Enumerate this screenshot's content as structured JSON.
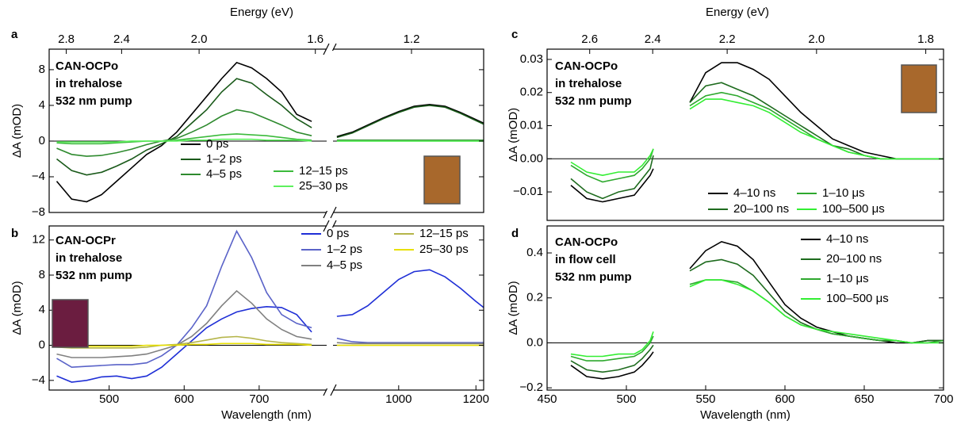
{
  "chart_data": [
    {
      "type": "line",
      "panel_label": "a",
      "x2label": "Energy (eV)",
      "ylabel": "ΔA (mOD)",
      "annotations": [
        {
          "text": "CAN-OCPo",
          "color": "#22b822"
        },
        {
          "text": "in trehalose",
          "color": "#22b822"
        },
        {
          "text": "532 nm pump",
          "color": "#000000"
        }
      ],
      "x": [
        430,
        450,
        470,
        490,
        510,
        530,
        550,
        570,
        590,
        610,
        630,
        650,
        670,
        690,
        710,
        730,
        750,
        770,
        800,
        840,
        880,
        920,
        960,
        1000,
        1040,
        1080,
        1120,
        1160,
        1200,
        1220
      ],
      "xlim": [
        420,
        1220
      ],
      "xbreak": [
        790,
        830
      ],
      "x2ticks": [
        2.8,
        2.4,
        {
          "value": 2,
          "label": "2.0"
        },
        1.6,
        1.2
      ],
      "ylim": [
        -8,
        10.3
      ],
      "yticks": [
        {
          "value": -8,
          "label": "−8"
        },
        {
          "value": -4,
          "label": "−4"
        },
        0,
        4,
        8
      ],
      "series": [
        {
          "name": "0 ps",
          "color": "#000000",
          "values": [
            -4.5,
            -6.5,
            -6.8,
            -6,
            -4.5,
            -3,
            -1.5,
            -0.5,
            1,
            3,
            5,
            7,
            8.8,
            8.2,
            7,
            5.5,
            3,
            2.2,
            null,
            0.5,
            1,
            1.8,
            2.6,
            3.3,
            3.9,
            4.1,
            3.9,
            3.2,
            2.4,
            2.0
          ]
        },
        {
          "name": "1–2 ps",
          "color": "#1a5a1a",
          "values": [
            -2,
            -3.3,
            -3.8,
            -3.5,
            -2.8,
            -2,
            -1,
            -0.3,
            0.5,
            2,
            3.5,
            5.5,
            7,
            6.5,
            5.2,
            4,
            2.5,
            1.5,
            null,
            0.4,
            0.9,
            1.7,
            2.5,
            3.2,
            3.8,
            4.0,
            3.8,
            3.1,
            2.3,
            1.9
          ]
        },
        {
          "name": "4–5 ps",
          "color": "#2e8a2e",
          "values": [
            -0.8,
            -1.5,
            -1.7,
            -1.6,
            -1.3,
            -0.9,
            -0.4,
            0,
            0.3,
            1,
            1.8,
            2.8,
            3.5,
            3.2,
            2.5,
            1.8,
            1,
            0.6,
            null,
            0.1,
            0.1,
            0.1,
            0.1,
            0.1,
            0.1,
            0.1,
            0.1,
            0.1,
            0.1,
            0.1
          ]
        },
        {
          "name": "12–15 ps",
          "color": "#3cba3c",
          "values": [
            -0.2,
            -0.3,
            -0.3,
            -0.3,
            -0.2,
            -0.1,
            0,
            0,
            0.1,
            0.3,
            0.5,
            0.7,
            0.8,
            0.7,
            0.6,
            0.4,
            0.2,
            0.1,
            null,
            0,
            0,
            0,
            0,
            0,
            0,
            0,
            0,
            0,
            0,
            0
          ]
        },
        {
          "name": "25–30 ps",
          "color": "#5ef05e",
          "values": [
            -0.1,
            -0.1,
            -0.1,
            -0.1,
            -0.1,
            0,
            0,
            0,
            0,
            0.1,
            0.1,
            0.2,
            0.2,
            0.2,
            0.1,
            0.1,
            0.1,
            0,
            null,
            0,
            0,
            0,
            0,
            0,
            0,
            0,
            0,
            0,
            0,
            0
          ]
        }
      ]
    },
    {
      "type": "line",
      "panel_label": "b",
      "xlabel": "Wavelength (nm)",
      "ylabel": "ΔA (mOD)",
      "annotations": [
        {
          "text": "CAN-OCPr",
          "color": "#2233dd"
        },
        {
          "text": "in trehalose",
          "color": "#2233dd"
        },
        {
          "text": "532 nm pump",
          "color": "#000000"
        }
      ],
      "x": [
        430,
        450,
        470,
        490,
        510,
        530,
        550,
        570,
        590,
        610,
        630,
        650,
        670,
        690,
        710,
        730,
        750,
        770,
        800,
        840,
        880,
        920,
        960,
        1000,
        1040,
        1080,
        1120,
        1160,
        1200,
        1220
      ],
      "xlim": [
        420,
        1220
      ],
      "xbreak": [
        790,
        830
      ],
      "xticks": [
        500,
        600,
        700,
        1000,
        1200
      ],
      "ylim": [
        -5.1,
        13.6
      ],
      "yticks": [
        {
          "value": -4,
          "label": "−4"
        },
        0,
        4,
        8,
        12
      ],
      "series": [
        {
          "name": "0 ps",
          "color": "#1f2fd6",
          "values": [
            -3.5,
            -4.2,
            -4,
            -3.6,
            -3.5,
            -3.8,
            -3.5,
            -2.5,
            -1,
            0.5,
            2,
            3,
            3.8,
            4.2,
            4.4,
            4.3,
            3.5,
            1.5,
            null,
            3.3,
            3.5,
            4.5,
            6,
            7.5,
            8.4,
            8.6,
            7.8,
            6.5,
            5,
            4.3
          ]
        },
        {
          "name": "1–2 ps",
          "color": "#5a63c8",
          "values": [
            -1.5,
            -2.5,
            -2.4,
            -2.3,
            -2.2,
            -2.2,
            -2,
            -1.2,
            0,
            2,
            4.5,
            9,
            13,
            10,
            6,
            3.5,
            2.5,
            2,
            null,
            0.8,
            0.4,
            0.3,
            0.3,
            0.3,
            0.3,
            0.3,
            0.3,
            0.3,
            0.3,
            0.3
          ]
        },
        {
          "name": "4–5 ps",
          "color": "#808080",
          "values": [
            -1,
            -1.4,
            -1.4,
            -1.4,
            -1.3,
            -1.2,
            -1,
            -0.5,
            0,
            1,
            2.5,
            4.5,
            6.2,
            4.8,
            3,
            1.8,
            1,
            0.7,
            null,
            0.3,
            0.2,
            0.2,
            0.2,
            0.2,
            0.2,
            0.2,
            0.2,
            0.2,
            0.2,
            0.2
          ]
        },
        {
          "name": "12–15 ps",
          "color": "#b5b54a",
          "values": [
            -0.2,
            -0.3,
            -0.3,
            -0.3,
            -0.3,
            -0.3,
            -0.2,
            0,
            0.1,
            0.3,
            0.6,
            0.9,
            1,
            0.8,
            0.5,
            0.3,
            0.2,
            0.1,
            null,
            0,
            0,
            0,
            0,
            0,
            0,
            0,
            0,
            0,
            0,
            0
          ]
        },
        {
          "name": "25–30 ps",
          "color": "#e8e000",
          "values": [
            -0.1,
            -0.1,
            -0.1,
            -0.1,
            -0.1,
            -0.1,
            0,
            0,
            0,
            0.1,
            0.1,
            0.2,
            0.2,
            0.2,
            0.1,
            0.1,
            0.1,
            0,
            null,
            0,
            0,
            0,
            0,
            0,
            0,
            0,
            0,
            0,
            0,
            0
          ]
        }
      ]
    },
    {
      "type": "line",
      "panel_label": "c",
      "x2label": "Energy (eV)",
      "ylabel": "ΔA (mOD)",
      "annotations": [
        {
          "text": "CAN-OCPo",
          "color": "#22b822"
        },
        {
          "text": "in trehalose",
          "color": "#22b822"
        },
        {
          "text": "532 nm pump",
          "color": "#000000"
        }
      ],
      "x": [
        465,
        475,
        485,
        495,
        505,
        510,
        515,
        517,
        528,
        540,
        550,
        560,
        570,
        580,
        590,
        600,
        610,
        620,
        630,
        640,
        650,
        660,
        670,
        680,
        690,
        700
      ],
      "xlim": [
        450,
        700
      ],
      "x2ticks": [
        2.6,
        2.4,
        2.2,
        {
          "value": 2,
          "label": "2.0"
        },
        1.8
      ],
      "ylim": [
        -0.0186,
        0.0331
      ],
      "yticks": [
        {
          "value": -0.01,
          "label": "−0.01"
        },
        {
          "value": 0,
          "label": "0.00"
        },
        0.01,
        0.02,
        0.03
      ],
      "series": [
        {
          "name": "4–10 ns",
          "color": "#000000",
          "values": [
            -0.008,
            -0.012,
            -0.013,
            -0.012,
            -0.011,
            -0.008,
            -0.005,
            -0.003,
            null,
            0.017,
            0.026,
            0.029,
            0.029,
            0.027,
            0.024,
            0.019,
            0.014,
            0.01,
            0.006,
            0.004,
            0.002,
            0.001,
            0,
            0,
            0,
            0
          ]
        },
        {
          "name": "20–100 ns",
          "color": "#1e6b1e",
          "values": [
            -0.006,
            -0.01,
            -0.012,
            -0.01,
            -0.009,
            -0.006,
            -0.003,
            0.001,
            null,
            0.017,
            0.022,
            0.023,
            0.021,
            0.019,
            0.016,
            0.013,
            0.01,
            0.007,
            0.004,
            0.003,
            0.001,
            0,
            0,
            0,
            0,
            0
          ]
        },
        {
          "name": "1–10 μs",
          "color": "#2ea82e",
          "values": [
            -0.002,
            -0.005,
            -0.007,
            -0.006,
            -0.005,
            -0.003,
            0,
            0.003,
            null,
            0.016,
            0.019,
            0.02,
            0.019,
            0.017,
            0.015,
            0.012,
            0.009,
            0.006,
            0.004,
            0.002,
            0.001,
            0,
            0,
            0,
            0,
            0
          ]
        },
        {
          "name": "100–500 μs",
          "color": "#33ee33",
          "values": [
            -0.001,
            -0.004,
            -0.005,
            -0.004,
            -0.004,
            -0.002,
            0.001,
            0.003,
            null,
            0.015,
            0.018,
            0.018,
            0.017,
            0.016,
            0.014,
            0.011,
            0.008,
            0.006,
            0.004,
            0.002,
            0.001,
            0,
            0,
            0,
            0,
            0
          ]
        }
      ]
    },
    {
      "type": "line",
      "panel_label": "d",
      "xlabel": "Wavelength (nm)",
      "ylabel": "ΔA (mOD)",
      "annotations": [
        {
          "text": "CAN-OCPo",
          "color": "#22b822"
        },
        {
          "text": "in flow cell",
          "color": "#22b822"
        },
        {
          "text": "532 nm pump",
          "color": "#000000"
        }
      ],
      "x": [
        465,
        475,
        485,
        495,
        505,
        510,
        515,
        517,
        528,
        540,
        550,
        560,
        570,
        580,
        590,
        600,
        610,
        620,
        630,
        640,
        650,
        660,
        670,
        680,
        690,
        700
      ],
      "xlim": [
        450,
        700
      ],
      "xticks": [
        450,
        500,
        550,
        600,
        650,
        700
      ],
      "ylim": [
        -0.21,
        0.52
      ],
      "yticks": [
        {
          "value": -0.2,
          "label": "−0.2"
        },
        {
          "value": 0,
          "label": "0.0"
        },
        0.2,
        0.4
      ],
      "series": [
        {
          "name": "4–10 ns",
          "color": "#000000",
          "values": [
            -0.1,
            -0.15,
            -0.16,
            -0.15,
            -0.13,
            -0.1,
            -0.06,
            -0.04,
            null,
            0.33,
            0.41,
            0.45,
            0.43,
            0.37,
            0.27,
            0.17,
            0.11,
            0.07,
            0.05,
            0.03,
            0.02,
            0.01,
            0,
            0,
            0.01,
            0.01
          ]
        },
        {
          "name": "20–100 ns",
          "color": "#1e6b1e",
          "values": [
            -0.08,
            -0.12,
            -0.13,
            -0.12,
            -0.1,
            -0.07,
            -0.03,
            -0.01,
            null,
            0.32,
            0.36,
            0.37,
            0.35,
            0.3,
            0.22,
            0.14,
            0.09,
            0.06,
            0.04,
            0.03,
            0.02,
            0.01,
            0.01,
            0,
            0.01,
            0.01
          ]
        },
        {
          "name": "1–10 μs",
          "color": "#2ea82e",
          "values": [
            -0.06,
            -0.08,
            -0.08,
            -0.07,
            -0.06,
            -0.04,
            0,
            0.03,
            null,
            0.26,
            0.28,
            0.28,
            0.27,
            0.23,
            0.18,
            0.12,
            0.08,
            0.06,
            0.04,
            0.03,
            0.02,
            0.01,
            0.01,
            0,
            0,
            0.01
          ]
        },
        {
          "name": "100–500 μs",
          "color": "#33ee33",
          "values": [
            -0.05,
            -0.06,
            -0.06,
            -0.05,
            -0.05,
            -0.03,
            0.01,
            0.05,
            null,
            0.25,
            0.28,
            0.28,
            0.26,
            0.23,
            0.18,
            0.12,
            0.08,
            0.06,
            0.05,
            0.04,
            0.03,
            0.02,
            0.01,
            0,
            0,
            0
          ]
        }
      ]
    }
  ]
}
